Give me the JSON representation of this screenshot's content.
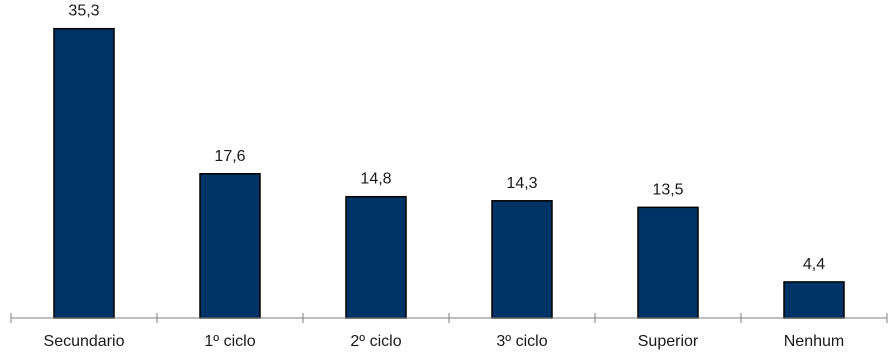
{
  "chart_data": {
    "type": "bar",
    "categories": [
      "Secundario",
      "1º ciclo",
      "2º ciclo",
      "3º ciclo",
      "Superior",
      "Nenhum"
    ],
    "values": [
      35.3,
      17.6,
      14.8,
      14.3,
      13.5,
      4.4
    ],
    "value_labels": [
      "35,3",
      "17,6",
      "14,8",
      "14,3",
      "13,5",
      "4,4"
    ],
    "title": "",
    "xlabel": "",
    "ylabel": "",
    "ylim": [
      0,
      38.8
    ],
    "grid": false,
    "legend": "none",
    "bar_color": "#003366"
  }
}
